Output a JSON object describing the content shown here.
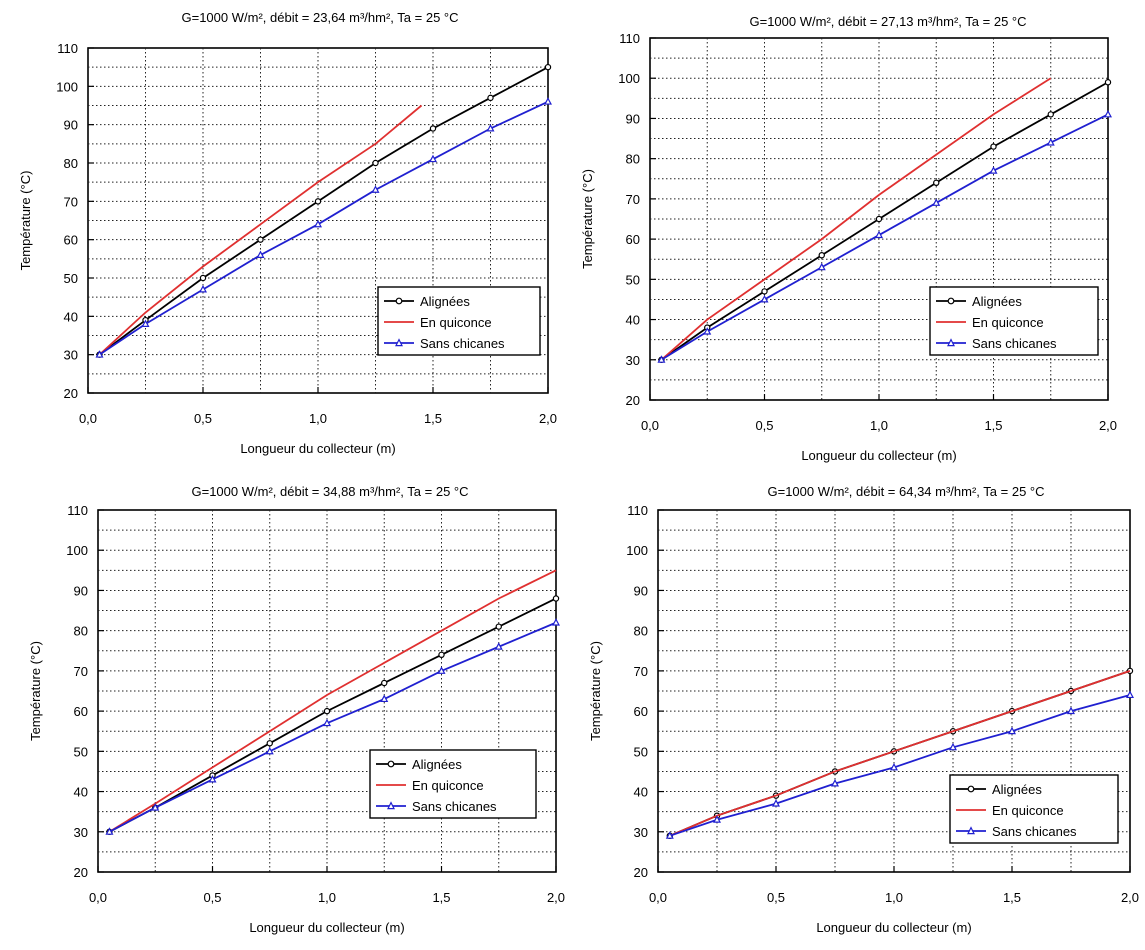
{
  "chart_data": [
    {
      "type": "line",
      "title": "G=1000 W/m², débit = 23,64 m³/hm², Ta = 25 °C",
      "xlabel": "Longueur du collecteur (m)",
      "ylabel": "Température (°C)",
      "xlim": [
        0,
        2
      ],
      "ylim": [
        20,
        110
      ],
      "xticks": [
        "0,0",
        "0,5",
        "1,0",
        "1,5",
        "2,0"
      ],
      "yticks": [
        "20",
        "30",
        "40",
        "50",
        "60",
        "70",
        "80",
        "90",
        "100",
        "110"
      ],
      "grid": true,
      "legend_position": "bottom-right",
      "series": [
        {
          "name": "Alignées",
          "x": [
            0.05,
            0.25,
            0.5,
            0.75,
            1.0,
            1.25,
            1.5,
            1.75,
            2.0
          ],
          "values": [
            30,
            39,
            50,
            60,
            70,
            80,
            89,
            97,
            105
          ]
        },
        {
          "name": "En quiconce",
          "x": [
            0.05,
            0.25,
            0.5,
            0.75,
            1.0,
            1.25,
            1.45
          ],
          "values": [
            30,
            41,
            53,
            64,
            75,
            85,
            95
          ]
        },
        {
          "name": "Sans chicanes",
          "x": [
            0.05,
            0.25,
            0.5,
            0.75,
            1.0,
            1.25,
            1.5,
            1.75,
            2.0
          ],
          "values": [
            30,
            38,
            47,
            56,
            64,
            73,
            81,
            89,
            96
          ]
        }
      ]
    },
    {
      "type": "line",
      "title": "G=1000 W/m², débit = 27,13 m³/hm², Ta = 25 °C",
      "xlabel": "Longueur du collecteur (m)",
      "ylabel": "Température (°C)",
      "xlim": [
        0,
        2
      ],
      "ylim": [
        20,
        110
      ],
      "xticks": [
        "0,0",
        "0,5",
        "1,0",
        "1,5",
        "2,0"
      ],
      "yticks": [
        "20",
        "30",
        "40",
        "50",
        "60",
        "70",
        "80",
        "90",
        "100",
        "110"
      ],
      "grid": true,
      "legend_position": "bottom-right",
      "series": [
        {
          "name": "Alignées",
          "x": [
            0.05,
            0.25,
            0.5,
            0.75,
            1.0,
            1.25,
            1.5,
            1.75,
            2.0
          ],
          "values": [
            30,
            38,
            47,
            56,
            65,
            74,
            83,
            91,
            99
          ]
        },
        {
          "name": "En quiconce",
          "x": [
            0.05,
            0.25,
            0.5,
            0.75,
            1.0,
            1.25,
            1.5,
            1.75
          ],
          "values": [
            30,
            40,
            50,
            60,
            71,
            81,
            91,
            100
          ]
        },
        {
          "name": "Sans chicanes",
          "x": [
            0.05,
            0.25,
            0.5,
            0.75,
            1.0,
            1.25,
            1.5,
            1.75,
            2.0
          ],
          "values": [
            30,
            37,
            45,
            53,
            61,
            69,
            77,
            84,
            91
          ]
        }
      ]
    },
    {
      "type": "line",
      "title": "G=1000 W/m², débit = 34,88 m³/hm², Ta = 25 °C",
      "xlabel": "Longueur du collecteur (m)",
      "ylabel": "Température (°C)",
      "xlim": [
        0,
        2
      ],
      "ylim": [
        20,
        110
      ],
      "xticks": [
        "0,0",
        "0,5",
        "1,0",
        "1,5",
        "2,0"
      ],
      "yticks": [
        "20",
        "30",
        "40",
        "50",
        "60",
        "70",
        "80",
        "90",
        "100",
        "110"
      ],
      "grid": true,
      "legend_position": "bottom-right",
      "series": [
        {
          "name": "Alignées",
          "x": [
            0.05,
            0.25,
            0.5,
            0.75,
            1.0,
            1.25,
            1.5,
            1.75,
            2.0
          ],
          "values": [
            30,
            36,
            44,
            52,
            60,
            67,
            74,
            81,
            88
          ]
        },
        {
          "name": "En quiconce",
          "x": [
            0.05,
            0.25,
            0.5,
            0.75,
            1.0,
            1.25,
            1.5,
            1.75,
            2.0
          ],
          "values": [
            30,
            37,
            46,
            55,
            64,
            72,
            80,
            88,
            95
          ]
        },
        {
          "name": "Sans chicanes",
          "x": [
            0.05,
            0.25,
            0.5,
            0.75,
            1.0,
            1.25,
            1.5,
            1.75,
            2.0
          ],
          "values": [
            30,
            36,
            43,
            50,
            57,
            63,
            70,
            76,
            82
          ]
        }
      ]
    },
    {
      "type": "line",
      "title": "G=1000 W/m², débit = 64,34 m³/hm², Ta = 25 °C",
      "xlabel": "Longueur du collecteur (m)",
      "ylabel": "Température (°C)",
      "xlim": [
        0,
        2
      ],
      "ylim": [
        20,
        110
      ],
      "xticks": [
        "0,0",
        "0,5",
        "1,0",
        "1,5",
        "2,0"
      ],
      "yticks": [
        "20",
        "30",
        "40",
        "50",
        "60",
        "70",
        "80",
        "90",
        "100",
        "110"
      ],
      "grid": true,
      "legend_position": "bottom-right",
      "series": [
        {
          "name": "Alignées",
          "x": [
            0.05,
            0.25,
            0.5,
            0.75,
            1.0,
            1.25,
            1.5,
            1.75,
            2.0
          ],
          "values": [
            29,
            34,
            39,
            45,
            50,
            55,
            60,
            65,
            70
          ]
        },
        {
          "name": "En quiconce",
          "x": [
            0.05,
            0.25,
            0.5,
            0.75,
            1.0,
            1.25,
            1.5,
            1.75,
            2.0
          ],
          "values": [
            29,
            34,
            39,
            45,
            50,
            55,
            60,
            65,
            70
          ]
        },
        {
          "name": "Sans chicanes",
          "x": [
            0.05,
            0.25,
            0.5,
            0.75,
            1.0,
            1.25,
            1.5,
            1.75,
            2.0
          ],
          "values": [
            29,
            33,
            37,
            42,
            46,
            51,
            55,
            60,
            64
          ]
        }
      ]
    }
  ],
  "series_colors": {
    "Alignées": "#000000",
    "En quiconce": "#e03030",
    "Sans chicanes": "#2020d0"
  },
  "series_markers": {
    "Alignées": "circle",
    "En quiconce": "none",
    "Sans chicanes": "triangle"
  }
}
